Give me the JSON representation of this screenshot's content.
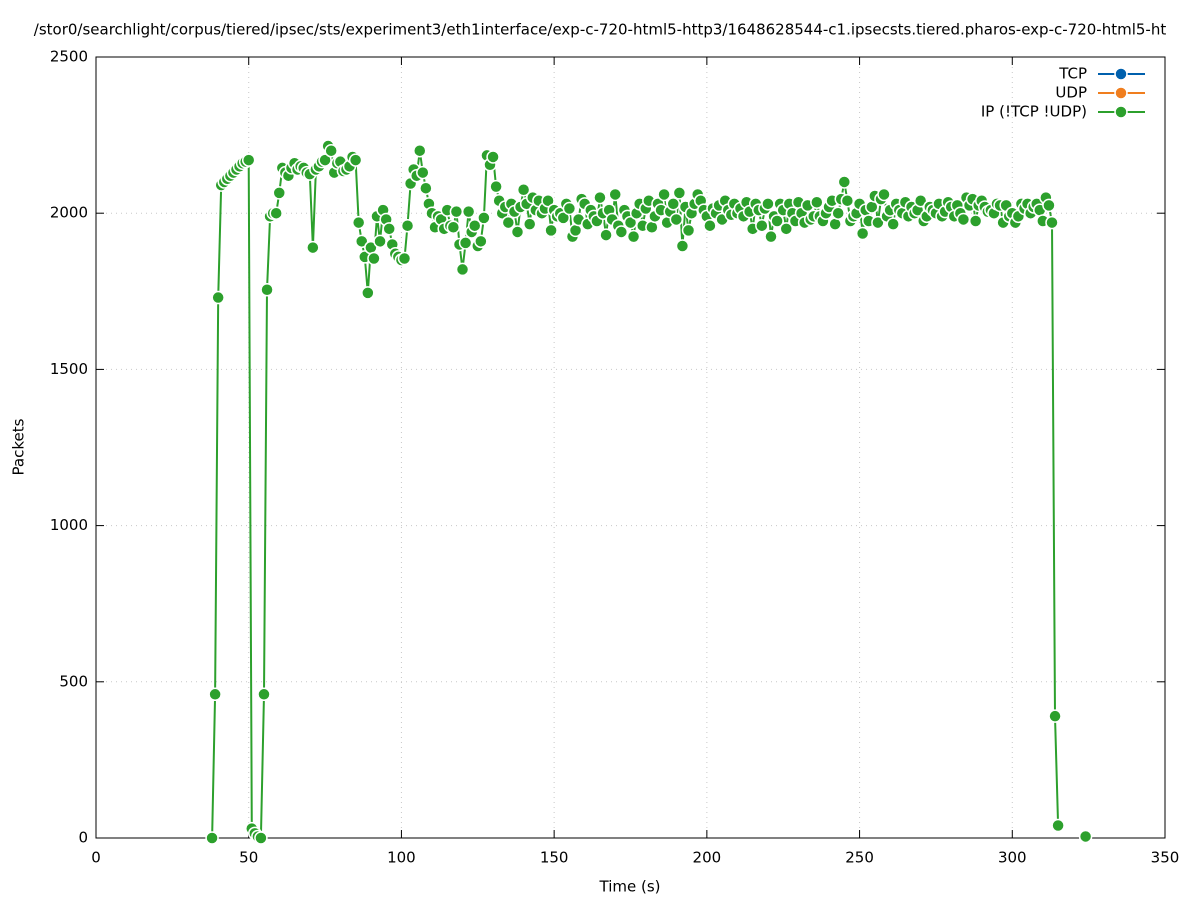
{
  "chart_data": {
    "type": "line",
    "title": "/stor0/searchlight/corpus/tiered/ipsec/sts/experiment3/eth1interface/exp-c-720-html5-http3/1648628544-c1.ipsecsts.tiered.pharos-exp-c-720-html5-ht",
    "xlabel": "Time (s)",
    "ylabel": "Packets",
    "xlim": [
      0,
      350
    ],
    "xticks": [
      0,
      50,
      100,
      150,
      200,
      250,
      300,
      350
    ],
    "ylim": [
      0,
      2500
    ],
    "yticks": [
      0,
      500,
      1000,
      1500,
      2000,
      2500
    ],
    "grid": true,
    "legend": "top right",
    "series": [
      {
        "name": "TCP",
        "color": "#0060ad",
        "x": [],
        "values": []
      },
      {
        "name": "UDP",
        "color": "#f07e1e",
        "x": [],
        "values": []
      },
      {
        "name": "IP (!TCP  !UDP)",
        "color": "#2ca02c",
        "x": [
          38,
          39,
          40,
          41,
          42,
          43,
          44,
          45,
          46,
          47,
          48,
          49,
          50,
          51,
          52,
          53,
          54,
          55,
          56,
          57,
          58,
          59,
          60,
          61,
          62,
          63,
          64,
          65,
          66,
          67,
          68,
          69,
          70,
          71,
          72,
          73,
          74,
          75,
          76,
          77,
          78,
          79,
          80,
          81,
          82,
          83,
          84,
          85,
          86,
          87,
          88,
          89,
          90,
          91,
          92,
          93,
          94,
          95,
          96,
          97,
          98,
          99,
          100,
          101,
          102,
          103,
          104,
          105,
          106,
          107,
          108,
          109,
          110,
          111,
          112,
          113,
          114,
          115,
          116,
          117,
          118,
          119,
          120,
          121,
          122,
          123,
          124,
          125,
          126,
          127,
          128,
          129,
          130,
          131,
          132,
          133,
          134,
          135,
          136,
          137,
          138,
          139,
          140,
          141,
          142,
          143,
          144,
          145,
          146,
          147,
          148,
          149,
          150,
          151,
          152,
          153,
          154,
          155,
          156,
          157,
          158,
          159,
          160,
          161,
          162,
          163,
          164,
          165,
          166,
          167,
          168,
          169,
          170,
          171,
          172,
          173,
          174,
          175,
          176,
          177,
          178,
          179,
          180,
          181,
          182,
          183,
          184,
          185,
          186,
          187,
          188,
          189,
          190,
          191,
          192,
          193,
          194,
          195,
          196,
          197,
          198,
          199,
          200,
          201,
          202,
          203,
          204,
          205,
          206,
          207,
          208,
          209,
          210,
          211,
          212,
          213,
          214,
          215,
          216,
          217,
          218,
          219,
          220,
          221,
          222,
          223,
          224,
          225,
          226,
          227,
          228,
          229,
          230,
          231,
          232,
          233,
          234,
          235,
          236,
          237,
          238,
          239,
          240,
          241,
          242,
          243,
          244,
          245,
          246,
          247,
          248,
          249,
          250,
          251,
          252,
          253,
          254,
          255,
          256,
          257,
          258,
          259,
          260,
          261,
          262,
          263,
          264,
          265,
          266,
          267,
          268,
          269,
          270,
          271,
          272,
          273,
          274,
          275,
          276,
          277,
          278,
          279,
          280,
          281,
          282,
          283,
          284,
          285,
          286,
          287,
          288,
          289,
          290,
          291,
          292,
          293,
          294,
          295,
          296,
          297,
          298,
          299,
          300,
          301,
          302,
          303,
          304,
          305,
          306,
          307,
          308,
          309,
          310,
          311,
          312,
          313,
          314,
          315,
          316,
          324
        ],
        "values": [
          0,
          460,
          1730,
          2090,
          2100,
          2110,
          2120,
          2130,
          2140,
          2150,
          2160,
          2165,
          2170,
          30,
          15,
          5,
          0,
          460,
          1755,
          1990,
          2000,
          2000,
          2065,
          2145,
          2130,
          2120,
          2145,
          2160,
          2140,
          2150,
          2145,
          2130,
          2125,
          1890,
          2140,
          2150,
          2165,
          2170,
          2215,
          2200,
          2130,
          2160,
          2165,
          2135,
          2140,
          2150,
          2180,
          2170,
          1970,
          1910,
          1860,
          1745,
          1890,
          1855,
          1990,
          1910,
          2010,
          1980,
          1950,
          1900,
          1870,
          1860,
          1850,
          1855,
          1960,
          2095,
          2140,
          2120,
          2200,
          2130,
          2080,
          2030,
          2000,
          1955,
          1990,
          1980,
          1950,
          2010,
          1960,
          1955,
          2005,
          1900,
          1820,
          1905,
          2005,
          1940,
          1960,
          1895,
          1910,
          1985,
          2185,
          2155,
          2180,
          2085,
          2040,
          2000,
          2020,
          1970,
          2030,
          2005,
          1940,
          2020,
          2075,
          2030,
          1965,
          2050,
          2010,
          2040,
          2000,
          2015,
          2040,
          1945,
          2010,
          1990,
          2000,
          1985,
          2030,
          2015,
          1925,
          1945,
          1980,
          2045,
          2030,
          1965,
          2010,
          1990,
          1975,
          2050,
          2000,
          1930,
          2010,
          1980,
          2060,
          1960,
          1940,
          2010,
          1990,
          1970,
          1925,
          2000,
          2030,
          1960,
          2015,
          2040,
          1955,
          1990,
          2030,
          2010,
          2060,
          1970,
          2005,
          2030,
          1980,
          2065,
          1895,
          2020,
          1945,
          2000,
          2030,
          2060,
          2040,
          2010,
          1990,
          1960,
          2015,
          2000,
          2025,
          1980,
          2040,
          2010,
          1995,
          2030,
          2000,
          2015,
          1990,
          2035,
          2005,
          1950,
          2030,
          2010,
          1960,
          2015,
          2030,
          1925,
          1990,
          1975,
          2030,
          2010,
          1950,
          2030,
          2000,
          1975,
          2035,
          2000,
          1970,
          2025,
          1980,
          1990,
          2035,
          1990,
          1975,
          2000,
          2020,
          2040,
          1965,
          2000,
          2045,
          2100,
          2040,
          1975,
          1990,
          2000,
          2030,
          1935,
          2010,
          1975,
          2020,
          2055,
          1970,
          2045,
          2060,
          1990,
          2010,
          1965,
          2030,
          2010,
          2000,
          2035,
          1990,
          2020,
          2000,
          2010,
          2040,
          1975,
          1990,
          2020,
          2010,
          2000,
          2030,
          1990,
          2005,
          2035,
          2020,
          1990,
          2025,
          2000,
          1980,
          2050,
          2025,
          2045,
          1975,
          2025,
          2040,
          2020,
          2005,
          2010,
          2000,
          2030,
          2025,
          1970,
          2025,
          1990,
          2000,
          1970,
          1990,
          2030,
          2015,
          2030,
          2000,
          2020,
          2030,
          2010,
          1975,
          2050,
          2025,
          1970,
          390,
          40,
          null,
          5
        ]
      }
    ]
  }
}
